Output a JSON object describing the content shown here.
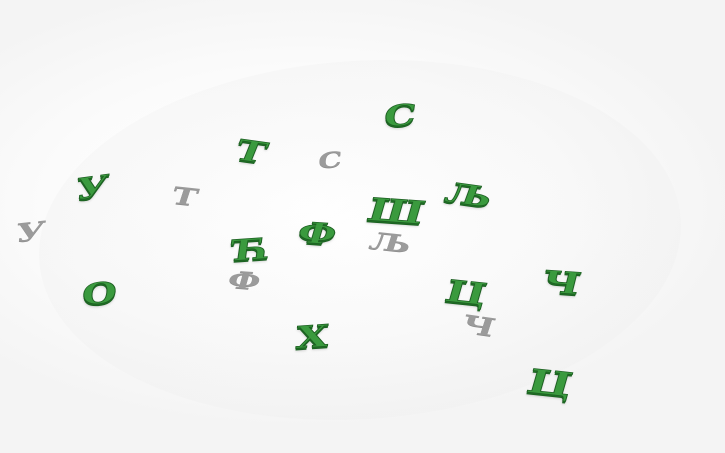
{
  "scene": {
    "letters": [
      {
        "id": "es-back",
        "char": "С",
        "tone": "green"
      },
      {
        "id": "te-green",
        "char": "Т",
        "tone": "green"
      },
      {
        "id": "es-shadow",
        "char": "С",
        "tone": "gray"
      },
      {
        "id": "u-green",
        "char": "У",
        "tone": "green"
      },
      {
        "id": "te-shadow",
        "char": "Т",
        "tone": "gray"
      },
      {
        "id": "lje-green",
        "char": "Љ",
        "tone": "green"
      },
      {
        "id": "sha-green",
        "char": "Ш",
        "tone": "green"
      },
      {
        "id": "u-shadow",
        "char": "У",
        "tone": "gray"
      },
      {
        "id": "ef-green",
        "char": "Ф",
        "tone": "green"
      },
      {
        "id": "tshe-green",
        "char": "Ћ",
        "tone": "green"
      },
      {
        "id": "lje-shadow",
        "char": "Љ",
        "tone": "gray"
      },
      {
        "id": "ef-shadow",
        "char": "Ф",
        "tone": "gray"
      },
      {
        "id": "che-green",
        "char": "Ч",
        "tone": "green"
      },
      {
        "id": "o-green",
        "char": "О",
        "tone": "green"
      },
      {
        "id": "tse-mid",
        "char": "Ц",
        "tone": "green"
      },
      {
        "id": "che-shadow",
        "char": "Ч",
        "tone": "gray"
      },
      {
        "id": "ha-green",
        "char": "Х",
        "tone": "green"
      },
      {
        "id": "tse-front",
        "char": "Ц",
        "tone": "green"
      }
    ]
  },
  "colors": {
    "letter_green": "#3a9a3e",
    "letter_green_edge": "#1d5f22",
    "shadow_gray": "#9b9b9b",
    "background": "#ffffff"
  }
}
